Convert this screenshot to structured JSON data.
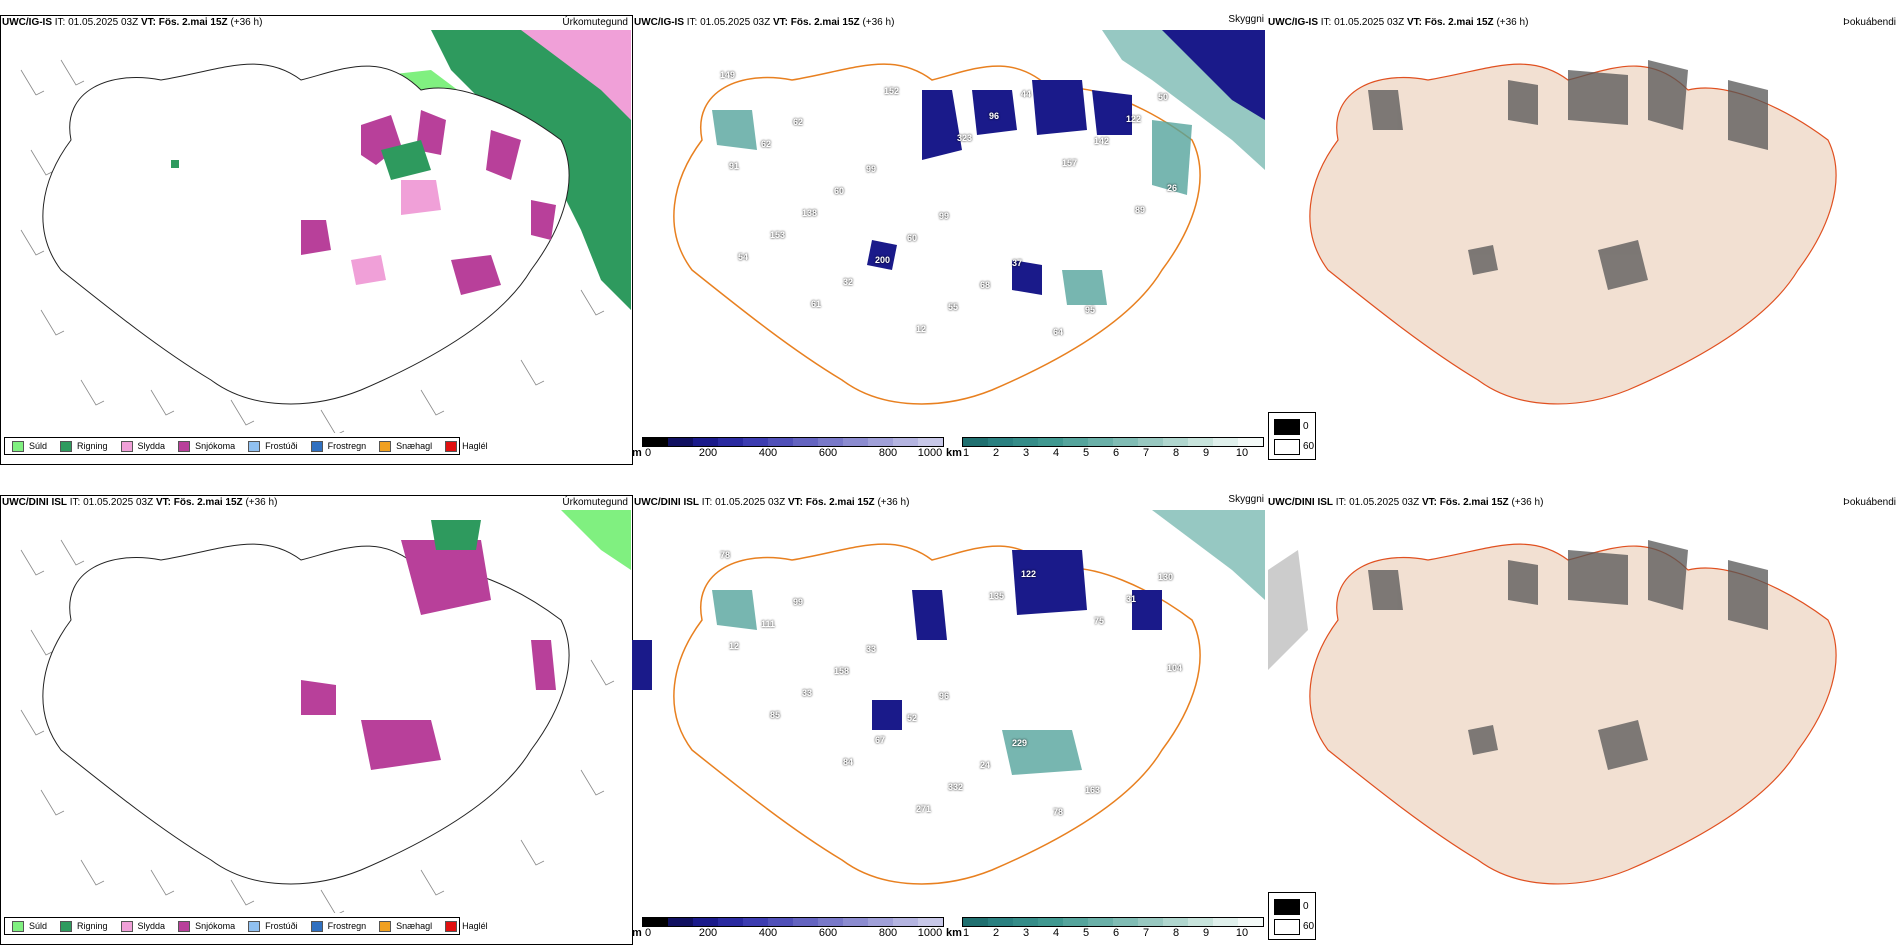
{
  "rows": [
    {
      "model": "UWC/IG-IS",
      "it_label": "IT:",
      "it": "01.05.2025 03Z",
      "vt_label": "VT:",
      "vt": "Fös. 2.mai 15Z",
      "lead": "(+36 h)"
    },
    {
      "model": "UWC/DINI ISL",
      "it_label": "IT:",
      "it": "01.05.2025 03Z",
      "vt_label": "VT:",
      "vt": "Fös. 2.mai 15Z",
      "lead": "(+36 h)"
    }
  ],
  "panel_names": {
    "precip": "Úrkomutegund",
    "cloud": "Skyggni",
    "fog": "Þokuábendi"
  },
  "precip_legend": [
    {
      "label": "Súld",
      "color": "#80f080"
    },
    {
      "label": "Rigning",
      "color": "#2e9a5e"
    },
    {
      "label": "Slydda",
      "color": "#f0a0d8"
    },
    {
      "label": "Snjókoma",
      "color": "#b8409a"
    },
    {
      "label": "Frostúði",
      "color": "#90c0f0"
    },
    {
      "label": "Frostregn",
      "color": "#3070c0"
    },
    {
      "label": "Snæhagl",
      "color": "#f0a020"
    },
    {
      "label": "Haglél",
      "color": "#e01010"
    }
  ],
  "cloud_base_scale": {
    "unit": "m",
    "ticks": [
      "0",
      "200",
      "400",
      "600",
      "800",
      "1000"
    ],
    "colors": [
      "#000000",
      "#101060",
      "#1a1a8a",
      "#2a2aa0",
      "#3c3cb0",
      "#5050b8",
      "#6464c0",
      "#7878c8",
      "#8c8cd0",
      "#a0a0d8",
      "#b4b4e0",
      "#c8c8e8"
    ]
  },
  "visibility_scale": {
    "unit": "km",
    "ticks": [
      "1",
      "2",
      "3",
      "4",
      "5",
      "6",
      "7",
      "8",
      "9",
      "10"
    ],
    "colors": [
      "#207070",
      "#2a8080",
      "#358c88",
      "#409890",
      "#55a49c",
      "#6ab0a8",
      "#80bcb4",
      "#98c8c0",
      "#b0d6ce",
      "#c8e4dc",
      "#e0f0ec",
      "#f4faf8"
    ]
  },
  "fog_legend": {
    "dark_label": "0",
    "light_label": "60"
  },
  "cloud_numbers_row1": [
    "149",
    "62",
    "99",
    "99",
    "37",
    "95",
    "50",
    "62",
    "60",
    "60",
    "68",
    "64",
    "122",
    "91",
    "138",
    "200",
    "55",
    "44",
    "142",
    "26",
    "153",
    "32",
    "12",
    "96",
    "157",
    "89",
    "54",
    "61",
    "152",
    "323"
  ],
  "cloud_numbers_row2": [
    "78",
    "99",
    "33",
    "96",
    "229",
    "163",
    "130",
    "111",
    "158",
    "52",
    "24",
    "78",
    "31",
    "12",
    "33",
    "67",
    "332",
    "122",
    "75",
    "104",
    "85",
    "84",
    "271",
    "135"
  ]
}
